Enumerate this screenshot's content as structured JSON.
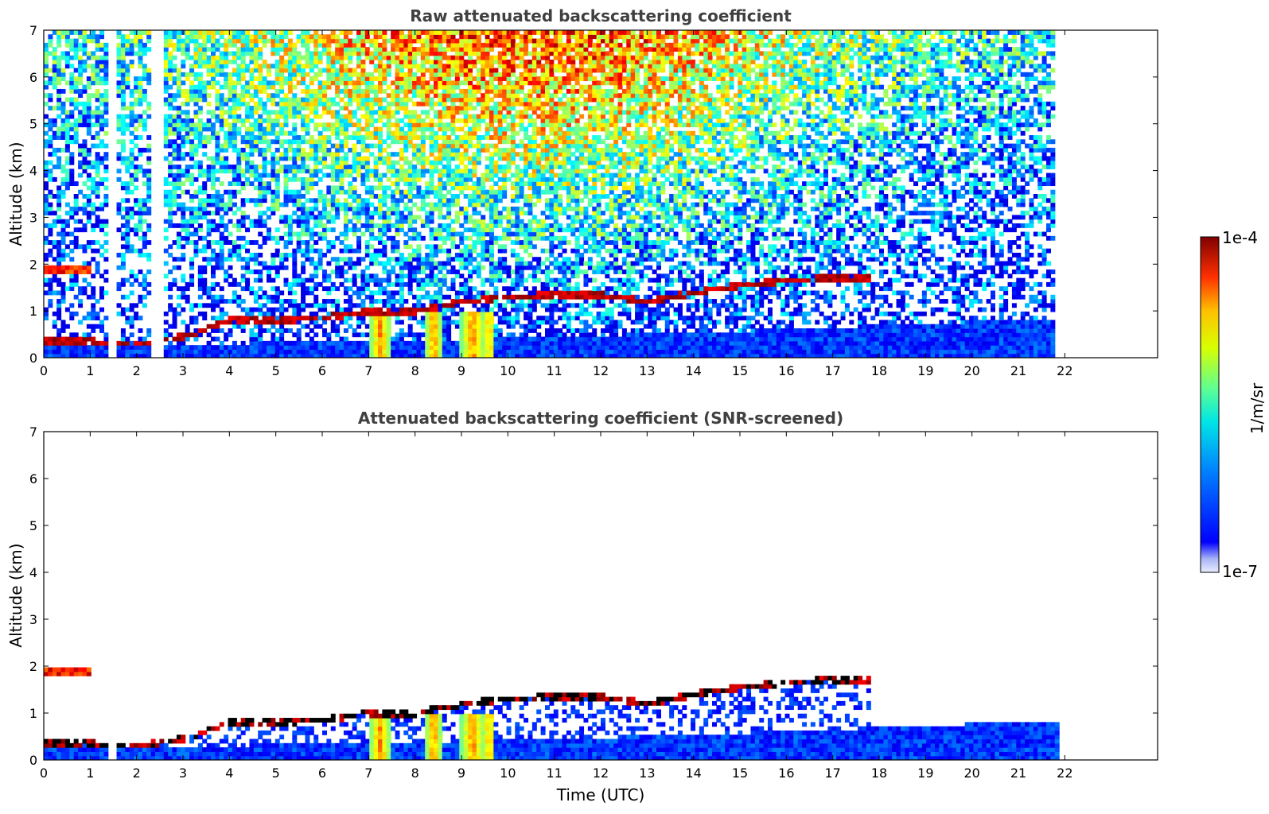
{
  "figure": {
    "colorbar": {
      "label": "1/m/sr",
      "min_label": "1e-7",
      "max_label": "1e-4",
      "scale": "log",
      "colormap": "jet"
    }
  },
  "chart_data": [
    {
      "type": "heatmap",
      "title": "Raw attenuated backscattering coefficient",
      "xlabel": "",
      "ylabel": "Altitude (km)",
      "xlim": [
        0,
        24
      ],
      "ylim": [
        0,
        7
      ],
      "x_ticks": [
        "0",
        "1",
        "2",
        "3",
        "4",
        "5",
        "6",
        "7",
        "8",
        "9",
        "10",
        "11",
        "12",
        "13",
        "14",
        "15",
        "16",
        "17",
        "18",
        "19",
        "20",
        "21",
        "22"
      ],
      "y_ticks": [
        "0",
        "1",
        "2",
        "3",
        "4",
        "5",
        "6",
        "7"
      ],
      "data_extent_hours": [
        0,
        21.9
      ],
      "gaps_hours": [
        [
          1.4,
          1.55
        ],
        [
          2.35,
          2.55
        ],
        [
          21.75,
          21.85
        ]
      ],
      "features": {
        "boundary_layer_top_km": [
          [
            0.0,
            0.35
          ],
          [
            1.0,
            0.35
          ],
          [
            2.0,
            0.3
          ],
          [
            3.0,
            0.45
          ],
          [
            4.0,
            0.8
          ],
          [
            5.0,
            0.8
          ],
          [
            6.0,
            0.85
          ],
          [
            7.0,
            1.0
          ],
          [
            8.0,
            1.0
          ],
          [
            9.0,
            1.2
          ],
          [
            10.0,
            1.3
          ],
          [
            11.0,
            1.35
          ],
          [
            12.0,
            1.35
          ],
          [
            13.0,
            1.2
          ],
          [
            14.0,
            1.4
          ],
          [
            15.0,
            1.55
          ],
          [
            16.0,
            1.65
          ],
          [
            17.0,
            1.72
          ],
          [
            17.8,
            1.72
          ]
        ],
        "aerosol_layer_top_km": [
          [
            0,
            0.25
          ],
          [
            5,
            0.3
          ],
          [
            10,
            0.4
          ],
          [
            15,
            0.55
          ],
          [
            20,
            0.75
          ],
          [
            21.5,
            0.75
          ]
        ],
        "residual_layer_early_km": [
          [
            0,
            1.85
          ],
          [
            0.55,
            1.85
          ],
          [
            1.05,
            1.85
          ]
        ],
        "notes": "Strong scattering (red) at layer tops; noisy high-altitude background increasing with daylight; plumes near 7.2, 8.4, 9.2-9.6 h"
      }
    },
    {
      "type": "heatmap",
      "title": "Attenuated backscattering coefficient (SNR-screened)",
      "xlabel": "Time (UTC)",
      "ylabel": "Altitude (km)",
      "xlim": [
        0,
        24
      ],
      "ylim": [
        0,
        7
      ],
      "x_ticks": [
        "0",
        "1",
        "2",
        "3",
        "4",
        "5",
        "6",
        "7",
        "8",
        "9",
        "10",
        "11",
        "12",
        "13",
        "14",
        "15",
        "16",
        "17",
        "18",
        "19",
        "20",
        "21",
        "22"
      ],
      "y_ticks": [
        "0",
        "1",
        "2",
        "3",
        "4",
        "5",
        "6",
        "7"
      ],
      "data_extent_hours": [
        0,
        21.9
      ],
      "gaps_hours": [
        [
          1.4,
          1.55
        ]
      ],
      "screening": "low SNR pixels removed (white)"
    }
  ]
}
